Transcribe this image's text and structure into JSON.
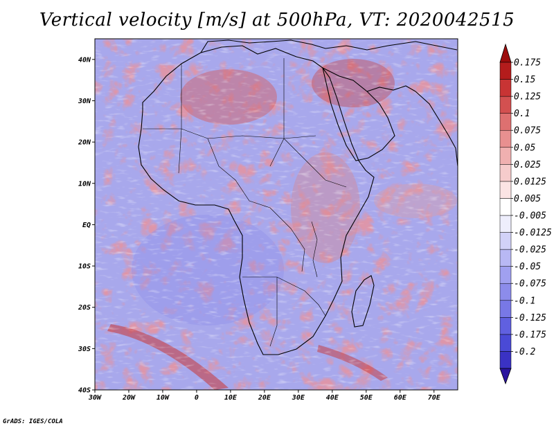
{
  "title": "Vertical velocity [m/s] at 500hPa, VT: 2020042515",
  "credit": "GrADS: IGES/COLA",
  "map": {
    "lon_range": [
      -30,
      77
    ],
    "lat_range": [
      -40,
      45
    ],
    "lat_ticks": [
      {
        "value": 40,
        "label": "40N"
      },
      {
        "value": 30,
        "label": "30N"
      },
      {
        "value": 20,
        "label": "20N"
      },
      {
        "value": 10,
        "label": "10N"
      },
      {
        "value": 0,
        "label": "EQ"
      },
      {
        "value": -10,
        "label": "10S"
      },
      {
        "value": -20,
        "label": "20S"
      },
      {
        "value": -30,
        "label": "30S"
      },
      {
        "value": -40,
        "label": "40S"
      }
    ],
    "lon_ticks": [
      {
        "value": -30,
        "label": "30W"
      },
      {
        "value": -20,
        "label": "20W"
      },
      {
        "value": -10,
        "label": "10W"
      },
      {
        "value": 0,
        "label": "0"
      },
      {
        "value": 10,
        "label": "10E"
      },
      {
        "value": 20,
        "label": "20E"
      },
      {
        "value": 30,
        "label": "30E"
      },
      {
        "value": 40,
        "label": "40E"
      },
      {
        "value": 50,
        "label": "50E"
      },
      {
        "value": 60,
        "label": "60E"
      },
      {
        "value": 70,
        "label": "70E"
      }
    ]
  },
  "colorbar": {
    "colors": [
      "#2a149e",
      "#3a32c4",
      "#4a4ad6",
      "#6060e0",
      "#7878e6",
      "#8c8ceb",
      "#a0a0f0",
      "#b8b8f4",
      "#d2d2f8",
      "#eeeefc",
      "#ffffff",
      "#fbe4e4",
      "#f6cccc",
      "#f0b0b0",
      "#e89090",
      "#de7070",
      "#d35050",
      "#c83434",
      "#b41c1c",
      "#9c0c0c"
    ],
    "labels": [
      "0.175",
      "0.15",
      "0.125",
      "0.1",
      "0.075",
      "0.05",
      "0.025",
      "0.0125",
      "0.005",
      "-0.005",
      "-0.0125",
      "-0.025",
      "-0.05",
      "-0.075",
      "-0.1",
      "-0.125",
      "-0.175",
      "-0.2"
    ]
  }
}
